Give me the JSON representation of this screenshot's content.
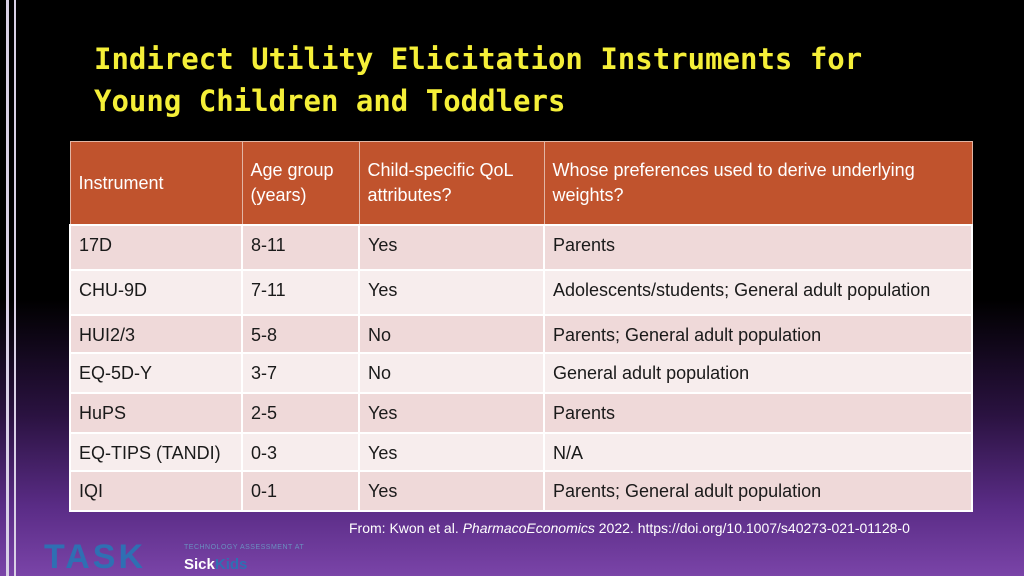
{
  "title_line1": "Indirect Utility Elicitation Instruments for",
  "title_line2": "Young Children and Toddlers",
  "table": {
    "headers": [
      "Instrument",
      "Age group (years)",
      "Child-specific QoL attributes?",
      "Whose preferences used to derive underlying weights?"
    ],
    "rows": [
      [
        "17D",
        "8-11",
        "Yes",
        "Parents"
      ],
      [
        "CHU-9D",
        "7-11",
        "Yes",
        "Adolescents/students; General adult population"
      ],
      [
        "HUI2/3",
        "5-8",
        "No",
        "Parents; General adult population"
      ],
      [
        "EQ-5D-Y",
        "3-7",
        "No",
        "General adult population"
      ],
      [
        "HuPS",
        "2-5",
        "Yes",
        "Parents"
      ],
      [
        "EQ-TIPS (TANDI)",
        "0-3",
        "Yes",
        "N/A"
      ],
      [
        "IQI",
        "0-1",
        "Yes",
        "Parents; General adult population"
      ]
    ]
  },
  "citation": {
    "prefix": "From: Kwon et al. ",
    "journal": "PharmacoEconomics",
    "suffix": " 2022. https://doi.org/10.1007/s40273-021-01128-0"
  },
  "logo": {
    "main": "TASK",
    "subtitle": "TECHNOLOGY ASSESSMENT AT",
    "sick": "Sick",
    "kids": "Kids"
  },
  "colors": {
    "title": "#f5ef38",
    "header_bg": "#c0532d",
    "row_odd": "#efd9d9",
    "row_even": "#f7eded"
  }
}
